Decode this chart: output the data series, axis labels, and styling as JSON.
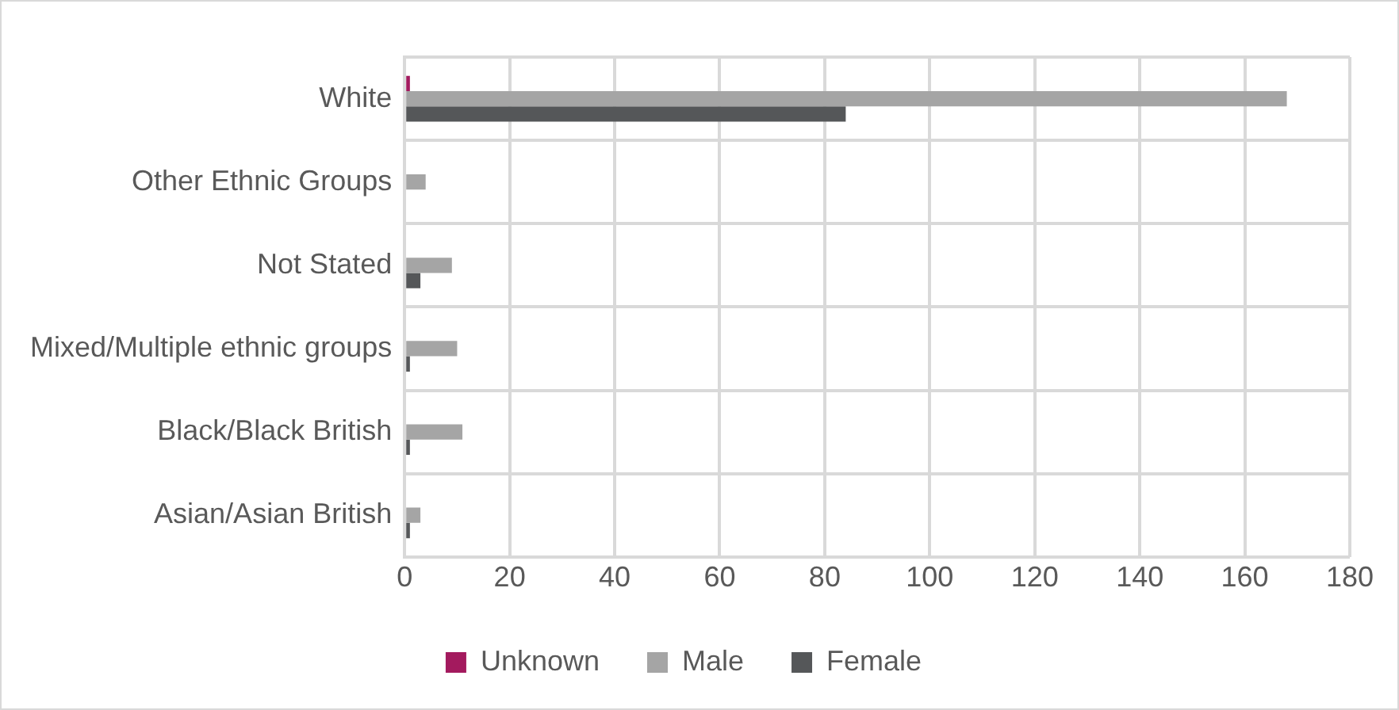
{
  "chart_data": {
    "type": "bar",
    "orientation": "horizontal",
    "categories": [
      "White",
      "Other Ethnic Groups",
      "Not Stated",
      "Mixed/Multiple ethnic groups",
      "Black/Black British",
      "Asian/Asian British"
    ],
    "series": [
      {
        "name": "Unknown",
        "color": "#a31a5e",
        "values": [
          1,
          0,
          0,
          0,
          0,
          0
        ]
      },
      {
        "name": "Male",
        "color": "#a5a5a5",
        "values": [
          168,
          4,
          9,
          10,
          11,
          3
        ]
      },
      {
        "name": "Female",
        "color": "#555759",
        "values": [
          84,
          0,
          3,
          1,
          1,
          1
        ]
      }
    ],
    "xlim": [
      0,
      180
    ],
    "xticks": [
      0,
      20,
      40,
      60,
      80,
      100,
      120,
      140,
      160,
      180
    ],
    "grid": true,
    "legend": "bottom"
  }
}
